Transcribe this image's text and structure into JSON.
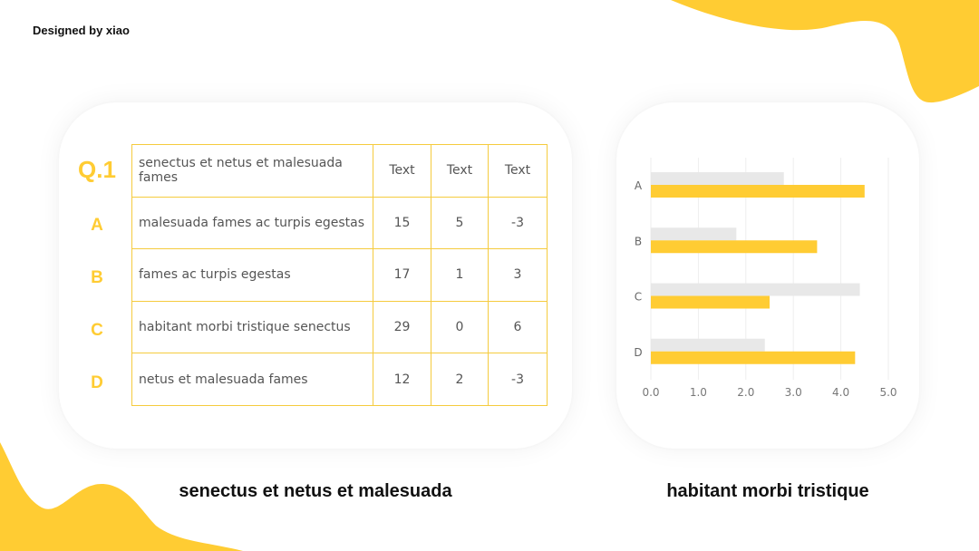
{
  "header": {
    "credit": "Designed by xiao"
  },
  "colors": {
    "accent": "#FFCC33",
    "secondary_bar": "#E8E8E8",
    "table_border": "#F5CB3E"
  },
  "table": {
    "title_label": "Q.1",
    "header": [
      "senectus et netus et malesuada fames",
      "Text",
      "Text",
      "Text"
    ],
    "rows": [
      {
        "label": "A",
        "cells": [
          "malesuada fames ac turpis egestas",
          "15",
          "5",
          "-3"
        ]
      },
      {
        "label": "B",
        "cells": [
          "fames ac turpis egestas",
          "17",
          "1",
          "3"
        ]
      },
      {
        "label": "C",
        "cells": [
          "habitant morbi tristique senectus",
          "29",
          "0",
          "6"
        ]
      },
      {
        "label": "D",
        "cells": [
          "netus et malesuada fames",
          "12",
          "2",
          "-3"
        ]
      }
    ]
  },
  "chart_data": {
    "type": "bar",
    "orientation": "horizontal",
    "categories": [
      "A",
      "B",
      "C",
      "D"
    ],
    "series": [
      {
        "values": [
          2.8,
          1.8,
          4.4,
          2.4
        ],
        "color": "#E8E8E8"
      },
      {
        "values": [
          4.5,
          3.5,
          2.5,
          4.3
        ],
        "color": "#FFCC33"
      }
    ],
    "xlim": [
      0,
      5
    ],
    "xticks": [
      "0.0",
      "1.0",
      "2.0",
      "3.0",
      "4.0",
      "5.0"
    ],
    "grid": "vertical",
    "legend": "none",
    "title": "",
    "xlabel": "",
    "ylabel": ""
  },
  "captions": {
    "left": "senectus et netus et malesuada",
    "right": "habitant morbi tristique"
  }
}
